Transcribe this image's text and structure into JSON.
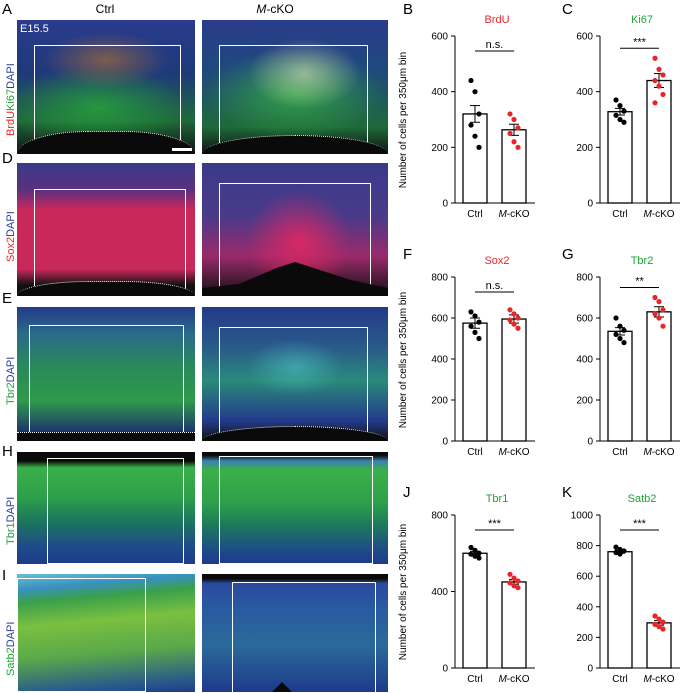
{
  "columns": {
    "ctrl": "Ctrl",
    "mcko_italic": "M",
    "mcko_rest": "-cKO"
  },
  "stage": "E15.5",
  "panels": {
    "A": "A",
    "B": "B",
    "C": "C",
    "D": "D",
    "E": "E",
    "F": "F",
    "G": "G",
    "H": "H",
    "I": "I",
    "J": "J",
    "K": "K"
  },
  "row_labels": {
    "A": [
      {
        "t": "BrdU",
        "c": "#e8262a"
      },
      {
        "t": "Ki67",
        "c": "#1fa33a"
      },
      {
        "t": "DAPI",
        "c": "#2b3d9e"
      }
    ],
    "D": [
      {
        "t": "Sox2",
        "c": "#e8262a"
      },
      {
        "t": "DAPI",
        "c": "#2b3d9e"
      }
    ],
    "E": [
      {
        "t": "Tbr2",
        "c": "#1fa33a"
      },
      {
        "t": "DAPI",
        "c": "#2b3d9e"
      }
    ],
    "H": [
      {
        "t": "Tbr1",
        "c": "#1fa33a"
      },
      {
        "t": "DAPI",
        "c": "#2b3d9e"
      }
    ],
    "I": [
      {
        "t": "Satb2",
        "c": "#1fa33a"
      },
      {
        "t": "DAPI",
        "c": "#2b3d9e"
      }
    ]
  },
  "colors": {
    "ctrl_dot": "#000000",
    "ko_dot": "#e8262a",
    "red_title": "#e8262a",
    "green_title": "#1fa33a"
  },
  "chart_data": [
    {
      "id": "B",
      "type": "bar",
      "title": "BrdU",
      "title_color": "#e8262a",
      "ylabel": "Number of cells per 350μm bin",
      "categories": [
        "Ctrl",
        "M-cKO"
      ],
      "ylim": [
        0,
        600
      ],
      "yticks": [
        0,
        200,
        400,
        600
      ],
      "significance": "n.s.",
      "series": [
        {
          "values": [
            320,
            263
          ]
        }
      ],
      "error": [
        30,
        20
      ],
      "points": [
        [
          440,
          400,
          320,
          280,
          240,
          200
        ],
        [
          320,
          300,
          270,
          250,
          220,
          200
        ]
      ]
    },
    {
      "id": "C",
      "type": "bar",
      "title": "Ki67",
      "title_color": "#1fa33a",
      "ylabel": "",
      "categories": [
        "Ctrl",
        "M-cKO"
      ],
      "ylim": [
        0,
        600
      ],
      "yticks": [
        0,
        200,
        400,
        600
      ],
      "significance": "***",
      "series": [
        {
          "values": [
            328,
            440
          ]
        }
      ],
      "error": [
        12,
        25
      ],
      "points": [
        [
          370,
          350,
          330,
          315,
          300,
          290
        ],
        [
          520,
          480,
          460,
          440,
          420,
          390,
          360
        ]
      ]
    },
    {
      "id": "F",
      "type": "bar",
      "title": "Sox2",
      "title_color": "#e8262a",
      "ylabel": "Number of cells per 350μm bin",
      "categories": [
        "Ctrl",
        "M-cKO"
      ],
      "ylim": [
        0,
        800
      ],
      "yticks": [
        0,
        200,
        400,
        600,
        800
      ],
      "significance": "n.s.",
      "series": [
        {
          "values": [
            575,
            595
          ]
        }
      ],
      "error": [
        25,
        20
      ],
      "points": [
        [
          630,
          610,
          580,
          560,
          530,
          500
        ],
        [
          640,
          620,
          600,
          590,
          570,
          550
        ]
      ]
    },
    {
      "id": "G",
      "type": "bar",
      "title": "Tbr2",
      "title_color": "#1fa33a",
      "ylabel": "",
      "categories": [
        "Ctrl",
        "M-cKO"
      ],
      "ylim": [
        0,
        800
      ],
      "yticks": [
        0,
        200,
        400,
        600,
        800
      ],
      "significance": "**",
      "series": [
        {
          "values": [
            535,
            630
          ]
        }
      ],
      "error": [
        18,
        25
      ],
      "points": [
        [
          600,
          560,
          540,
          520,
          500,
          480
        ],
        [
          700,
          680,
          640,
          620,
          600,
          560
        ]
      ]
    },
    {
      "id": "J",
      "type": "bar",
      "title": "Tbr1",
      "title_color": "#1fa33a",
      "ylabel": "Number of cells per 350μm bin",
      "categories": [
        "Ctrl",
        "M-cKO"
      ],
      "ylim": [
        0,
        800
      ],
      "yticks": [
        0,
        400,
        800
      ],
      "significance": "***",
      "series": [
        {
          "values": [
            600,
            450
          ]
        }
      ],
      "error": [
        10,
        12
      ],
      "points": [
        [
          630,
          615,
          600,
          595,
          585,
          575
        ],
        [
          490,
          470,
          455,
          445,
          430,
          420
        ]
      ]
    },
    {
      "id": "K",
      "type": "bar",
      "title": "Satb2",
      "title_color": "#1fa33a",
      "ylabel": "",
      "categories": [
        "Ctrl",
        "M-cKO"
      ],
      "ylim": [
        0,
        1000
      ],
      "yticks": [
        0,
        200,
        400,
        600,
        800,
        1000
      ],
      "significance": "***",
      "series": [
        {
          "values": [
            760,
            295
          ]
        }
      ],
      "error": [
        10,
        15
      ],
      "points": [
        [
          790,
          775,
          765,
          755,
          745
        ],
        [
          340,
          320,
          300,
          285,
          270,
          255
        ]
      ]
    }
  ]
}
